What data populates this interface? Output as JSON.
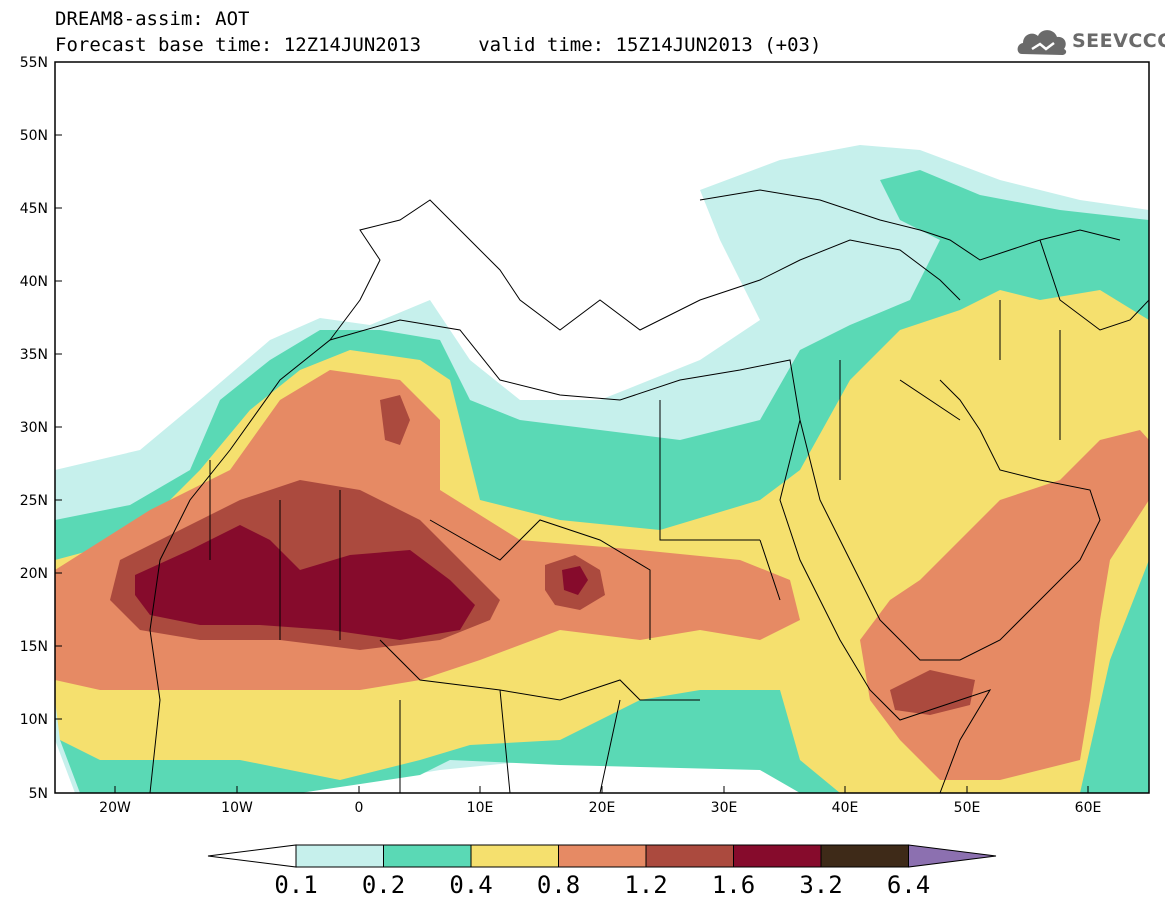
{
  "title": {
    "line1": "DREAM8-assim: AOT",
    "line2": "Forecast base time: 12Z14JUN2013     valid time: 15Z14JUN2013 (+03)"
  },
  "logo": {
    "text": "SEEVCCC",
    "icon": "cloud-icon"
  },
  "map": {
    "lon_range": [
      -25,
      65
    ],
    "lat_range": [
      5,
      55
    ],
    "lat_labels": [
      "55N",
      "50N",
      "45N",
      "40N",
      "35N",
      "30N",
      "25N",
      "20N",
      "15N",
      "10N",
      "5N"
    ],
    "lon_labels": [
      "20W",
      "10W",
      "0",
      "10E",
      "20E",
      "30E",
      "40E",
      "50E",
      "60E"
    ]
  },
  "colorbar": {
    "labels": [
      "0.1",
      "0.2",
      "0.4",
      "0.8",
      "1.2",
      "1.6",
      "3.2",
      "6.4"
    ],
    "colors": [
      "#c6f0ec",
      "#5ad9b5",
      "#f5e06e",
      "#e68a64",
      "#ab4a3e",
      "#860b2c",
      "#3e2a18",
      "#8c70b0"
    ]
  }
}
